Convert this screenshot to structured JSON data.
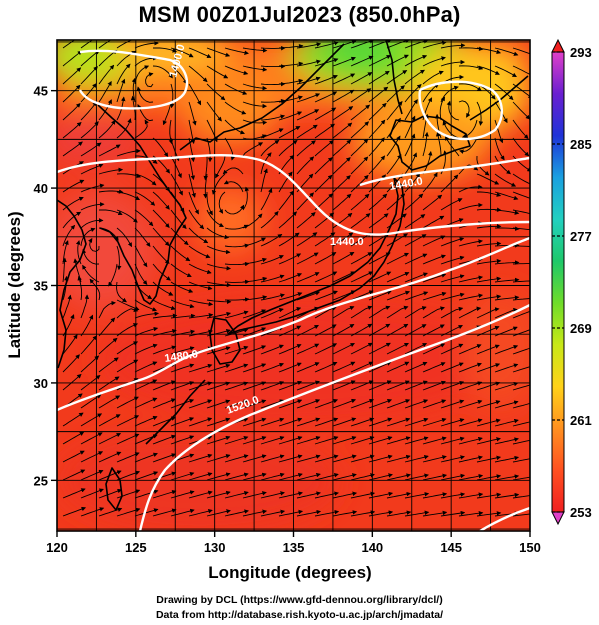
{
  "title": "MSM 00Z01Jul2023 (850.0hPa)",
  "axes": {
    "xlabel": "Longitude (degrees)",
    "ylabel": "Latitude  (degrees)",
    "x_ticks": [
      "120",
      "125",
      "130",
      "135",
      "140",
      "145",
      "150"
    ],
    "y_ticks": [
      "25",
      "30",
      "35",
      "40",
      "45"
    ],
    "xlim": [
      120,
      150
    ],
    "ylim": [
      22.4,
      47.6
    ]
  },
  "colorbar": {
    "labels": [
      "293",
      "285",
      "277",
      "269",
      "261",
      "253"
    ],
    "range": [
      253,
      293
    ],
    "colors": [
      "#e040c8",
      "#6a1fd0",
      "#1f33d8",
      "#1aa0e0",
      "#22d0c0",
      "#1ec86a",
      "#6fdc2a",
      "#c8e818",
      "#ffd21a",
      "#ff9020",
      "#ff5020",
      "#f02020"
    ]
  },
  "contours": {
    "labels": [
      "1400.0",
      "1440.0",
      "1440.0",
      "1480.0",
      "1520.0"
    ],
    "unit": "geopotential height (m)"
  },
  "field": {
    "variable": "temperature (K)",
    "style": "shaded with streamlines"
  },
  "footer": {
    "drawing": "Drawing by DCL (https://www.gfd-dennou.org/library/dcl/)",
    "data": "Data from http://database.rish.kyoto-u.ac.jp/arch/jmadata/"
  },
  "colors": {
    "land_outline": "#000000",
    "contour": "#ffffff",
    "frame": "#000000"
  }
}
